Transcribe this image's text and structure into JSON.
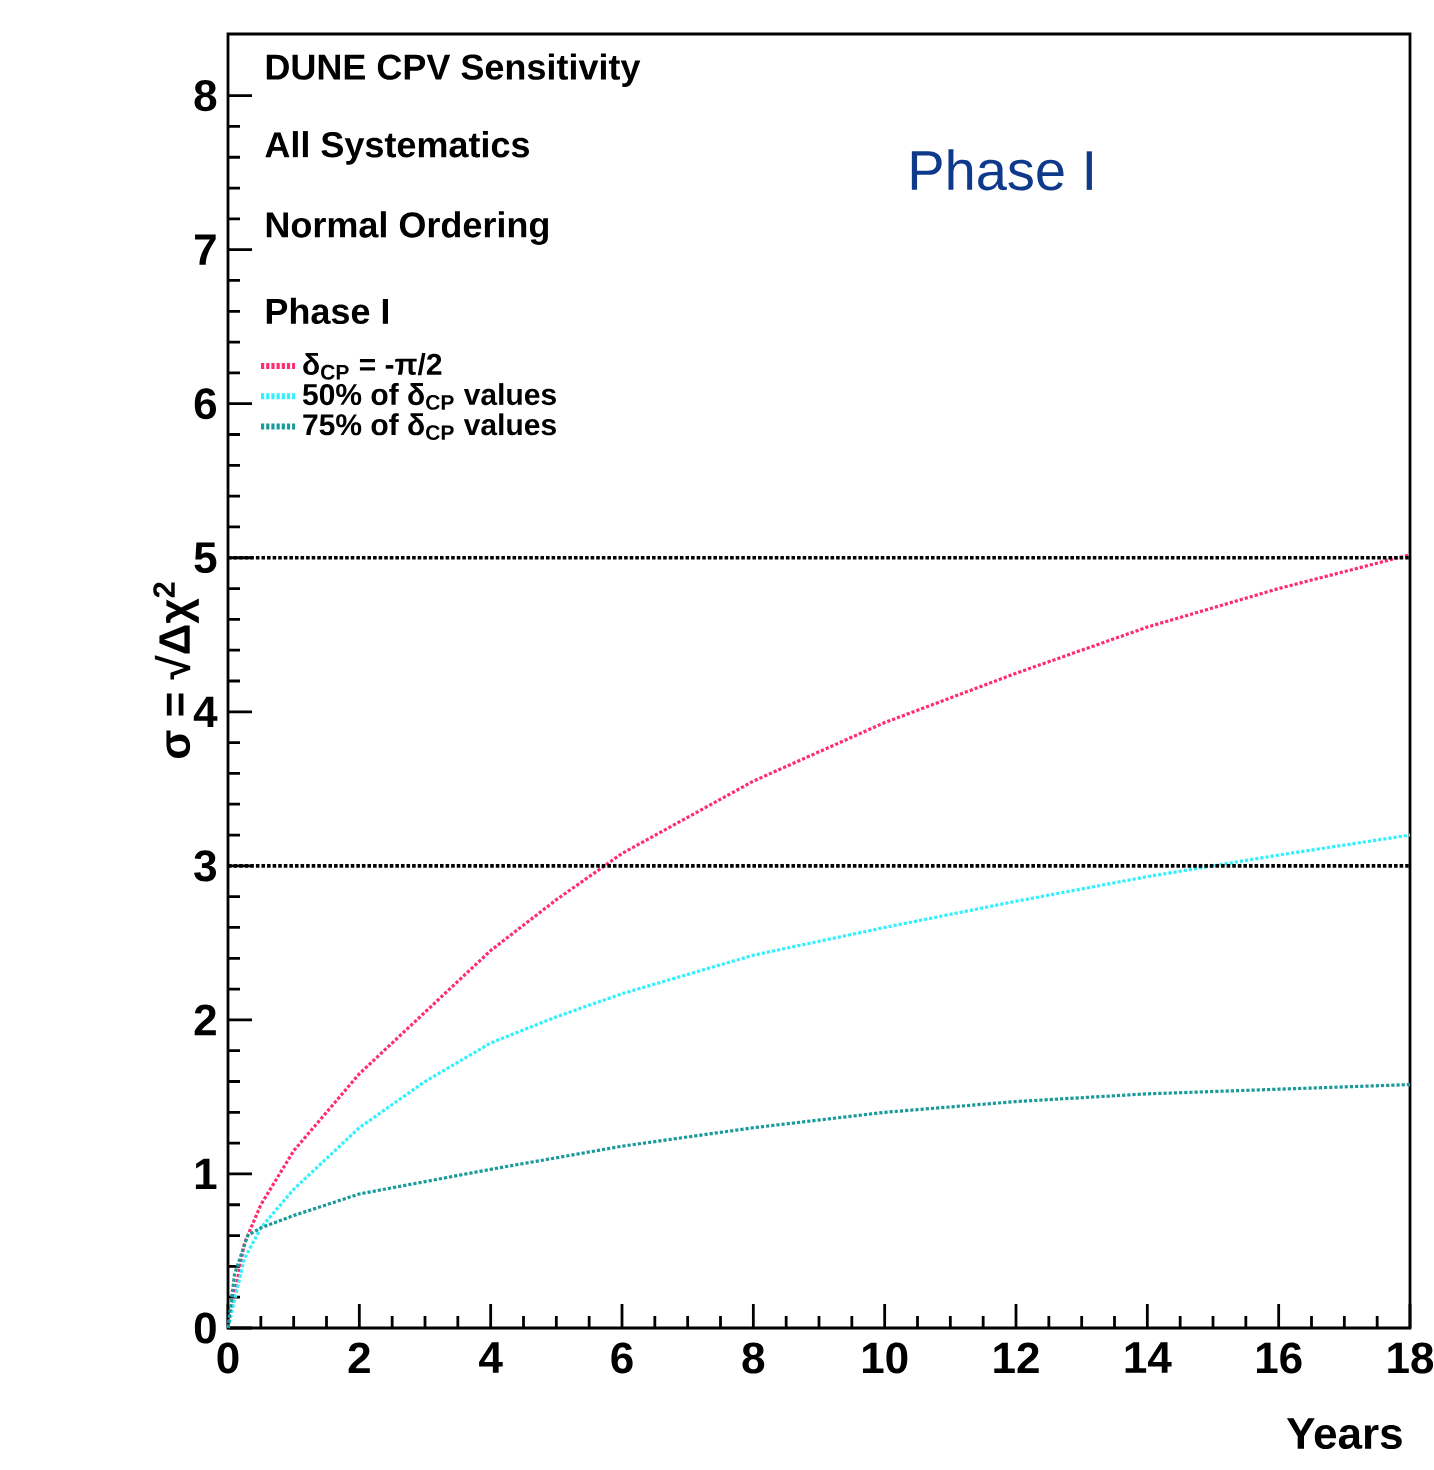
{
  "chart_data": {
    "type": "line",
    "title": "Phase I",
    "xlabel": "Years",
    "ylabel": "σ = √Δχ$^{2}$",
    "annotations": [
      "DUNE CPV Sensitivity",
      "All Systematics",
      "Normal Ordering",
      "Phase I"
    ],
    "xlim": [
      0,
      18
    ],
    "ylim": [
      0,
      8.4
    ],
    "xticks": [
      0,
      2,
      4,
      6,
      8,
      10,
      12,
      14,
      16,
      18
    ],
    "yticks": [
      0,
      1,
      2,
      3,
      4,
      5,
      6,
      7,
      8
    ],
    "legend": "top left",
    "line_style": "dotted",
    "ref_lines": [
      {
        "axis": "y",
        "value": 3,
        "color": "#000000",
        "line_style": "dotted"
      },
      {
        "axis": "y",
        "value": 5,
        "color": "#000000",
        "line_style": "dotted"
      }
    ],
    "series": [
      {
        "name": "δ$_{CP}$ = -π/2",
        "color": "#ff2d6e",
        "x": [
          0,
          0.25,
          0.5,
          1,
          2,
          3,
          4,
          5,
          6,
          8,
          10,
          12,
          14,
          16,
          18
        ],
        "values": [
          0,
          0.55,
          0.8,
          1.15,
          1.65,
          2.05,
          2.45,
          2.78,
          3.08,
          3.55,
          3.93,
          4.25,
          4.55,
          4.8,
          5.02
        ]
      },
      {
        "name": "50% of δ$_{CP}$ values",
        "color": "#33f0ff",
        "x": [
          0,
          0.25,
          0.5,
          1,
          2,
          3,
          4,
          5,
          6,
          8,
          10,
          12,
          14,
          15,
          16,
          18
        ],
        "values": [
          0,
          0.45,
          0.65,
          0.9,
          1.3,
          1.6,
          1.85,
          2.02,
          2.17,
          2.42,
          2.6,
          2.77,
          2.93,
          3.0,
          3.07,
          3.2
        ]
      },
      {
        "name": "75% of δ$_{CP}$ values",
        "color": "#1a9a9a",
        "x": [
          0,
          0.1,
          0.3,
          0.5,
          1,
          2,
          4,
          6,
          8,
          10,
          12,
          14,
          16,
          18
        ],
        "values": [
          0,
          0.35,
          0.6,
          0.65,
          0.73,
          0.87,
          1.03,
          1.18,
          1.3,
          1.4,
          1.47,
          1.52,
          1.55,
          1.58
        ]
      }
    ]
  }
}
